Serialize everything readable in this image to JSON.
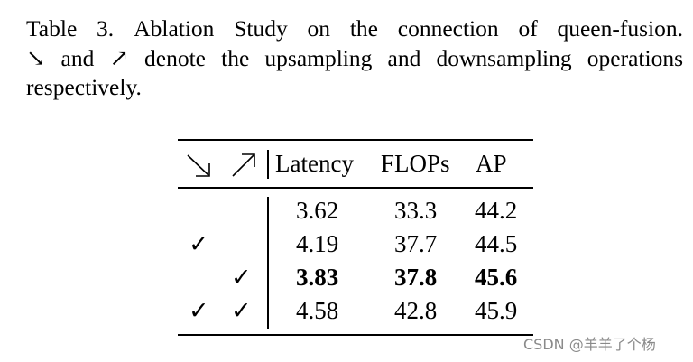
{
  "caption": {
    "label": "Table 3.",
    "line1_text": "Ablation Study on the connection of queen-fusion.",
    "line2_and": "and",
    "line2_rest": "denote the upsampling and downsampling operations",
    "line3": "respectively.",
    "upsample_symbol": "↘",
    "downsample_symbol": "↗"
  },
  "table": {
    "headers": {
      "up": "↘",
      "down": "↗",
      "latency": "Latency",
      "flops": "FLOPs",
      "ap": "AP"
    },
    "rows": [
      {
        "up": "",
        "down": "",
        "latency": "3.62",
        "flops": "33.3",
        "ap": "44.2",
        "bold": false
      },
      {
        "up": "✓",
        "down": "",
        "latency": "4.19",
        "flops": "37.7",
        "ap": "44.5",
        "bold": false
      },
      {
        "up": "",
        "down": "✓",
        "latency": "3.83",
        "flops": "37.8",
        "ap": "45.6",
        "bold": true
      },
      {
        "up": "✓",
        "down": "✓",
        "latency": "4.58",
        "flops": "42.8",
        "ap": "45.9",
        "bold": false
      }
    ]
  },
  "watermark": "CSDN @羊羊了个杨"
}
